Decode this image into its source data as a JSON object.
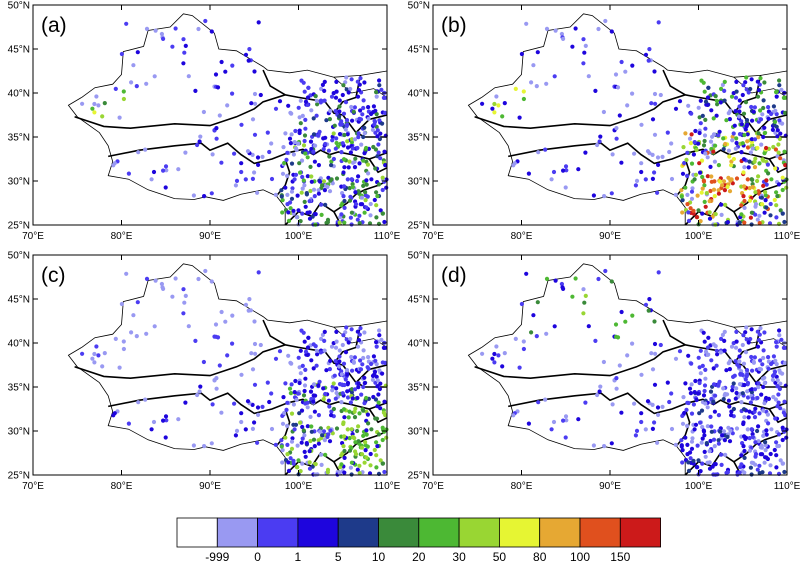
{
  "figure": {
    "panels": [
      {
        "label": "(a)"
      },
      {
        "label": "(b)"
      },
      {
        "label": "(c)"
      },
      {
        "label": "(d)"
      }
    ],
    "lat_ticks": [
      "25°N",
      "30°N",
      "35°N",
      "40°N",
      "45°N",
      "50°N"
    ],
    "lon_ticks": [
      "70°E",
      "80°E",
      "90°E",
      "100°E",
      "110°E"
    ]
  },
  "colorbar": {
    "colors": [
      "#ffffff",
      "#9999f2",
      "#4b3cf2",
      "#1e05dd",
      "#1e3a8a",
      "#3a8a3a",
      "#4db833",
      "#99d633",
      "#e6f533",
      "#e6a833",
      "#e0501e",
      "#cc1a1a"
    ],
    "labels": [
      "-999",
      "0",
      "1",
      "5",
      "10",
      "20",
      "30",
      "50",
      "80",
      "100",
      "150"
    ]
  },
  "map_extent": {
    "lon": [
      70,
      110
    ],
    "lat": [
      25,
      50
    ]
  }
}
